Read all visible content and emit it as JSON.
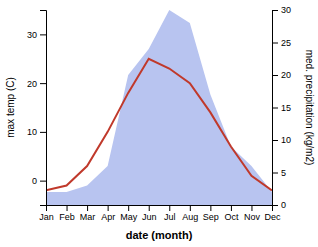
{
  "chart_data": {
    "type": "line",
    "categories": [
      "Jan",
      "Feb",
      "Mar",
      "Apr",
      "May",
      "Jun",
      "Jul",
      "Aug",
      "Sep",
      "Oct",
      "Nov",
      "Dec"
    ],
    "xlabel": "date (month)",
    "ylabel": "max temp (C)",
    "y2label": "med. precipitation (kg/m2)",
    "series": [
      {
        "type": "area",
        "axis": "y2",
        "color": "#b8c4f0",
        "values": [
          2,
          2,
          3,
          6,
          20,
          24,
          30,
          28,
          17,
          9,
          6,
          2
        ]
      },
      {
        "type": "line",
        "color": "#c0392b",
        "values": [
          -2,
          -1,
          3,
          10,
          18,
          25,
          23,
          20,
          14,
          7,
          1,
          -2
        ]
      }
    ],
    "ylim": [
      -5,
      35
    ],
    "yticks": [
      0,
      10,
      20,
      30
    ],
    "y2lim": [
      0,
      30
    ],
    "y2ticks": [
      0,
      5,
      10,
      15,
      20,
      25,
      30
    ]
  }
}
